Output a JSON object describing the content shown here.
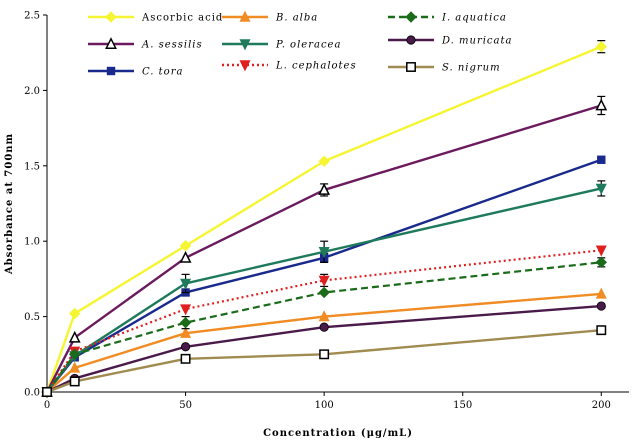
{
  "chart_data": {
    "type": "line",
    "title": "",
    "xlabel": "Concentration (μg/mL)",
    "ylabel": "Absorbance at 700nm",
    "xlim": [
      0,
      210
    ],
    "ylim": [
      0,
      2.5
    ],
    "xticks": [
      0,
      50,
      100,
      150,
      200
    ],
    "yticks": [
      0.0,
      0.5,
      1.0,
      1.5,
      2.0,
      2.5
    ],
    "xtick_labels": [
      "0",
      "50",
      "100",
      "150",
      "200"
    ],
    "ytick_labels": [
      "0.0",
      "0.5",
      "1.0",
      "1.5",
      "2.0",
      "2.5"
    ],
    "x": [
      0,
      10,
      50,
      100,
      200
    ],
    "series": [
      {
        "name": "Ascorbic acid",
        "italic": false,
        "color": "#f5f532",
        "marker": "diamond",
        "dash": "solid",
        "values": [
          0.0,
          0.52,
          0.97,
          1.53,
          2.29
        ],
        "errors": [
          0,
          0,
          0,
          0,
          0.04
        ]
      },
      {
        "name": "A. sessilis",
        "italic": true,
        "color": "#6b1a5e",
        "marker": "triangle-open",
        "dash": "solid",
        "values": [
          0.0,
          0.36,
          0.89,
          1.34,
          1.9
        ],
        "errors": [
          0,
          0,
          0,
          0.04,
          0.06
        ]
      },
      {
        "name": "C. tora",
        "italic": true,
        "color": "#1a2a8c",
        "marker": "square",
        "dash": "solid",
        "values": [
          0.0,
          0.23,
          0.66,
          0.89,
          1.54
        ],
        "errors": [
          0,
          0,
          0,
          0.03,
          0
        ]
      },
      {
        "name": "B. alba",
        "italic": true,
        "color": "#f08c23",
        "marker": "triangle",
        "dash": "solid",
        "values": [
          0.0,
          0.16,
          0.39,
          0.5,
          0.65
        ],
        "errors": [
          0,
          0,
          0,
          0,
          0
        ]
      },
      {
        "name": "P. oleracea",
        "italic": true,
        "color": "#1e7a5a",
        "marker": "triangle-down",
        "dash": "solid",
        "values": [
          0.0,
          0.24,
          0.72,
          0.93,
          1.35
        ],
        "errors": [
          0,
          0,
          0.06,
          0.07,
          0.05
        ]
      },
      {
        "name": "L. cephalotes",
        "italic": true,
        "color": "#e02020",
        "marker": "triangle-down",
        "dash": "dotted",
        "values": [
          0.0,
          0.27,
          0.55,
          0.74,
          0.94
        ],
        "errors": [
          0,
          0,
          0,
          0.04,
          0
        ]
      },
      {
        "name": "I. aquatica",
        "italic": true,
        "color": "#1a6b1a",
        "marker": "diamond",
        "dash": "dashed",
        "values": [
          0.0,
          0.25,
          0.46,
          0.66,
          0.86
        ],
        "errors": [
          0,
          0,
          0.04,
          0,
          0.03
        ]
      },
      {
        "name": "D. muricata",
        "italic": true,
        "color": "#4a1a4a",
        "marker": "circle",
        "dash": "solid",
        "values": [
          0.0,
          0.09,
          0.3,
          0.43,
          0.57
        ],
        "errors": [
          0,
          0,
          0,
          0,
          0
        ]
      },
      {
        "name": "S. nigrum",
        "italic": true,
        "color": "#a08c50",
        "marker": "square-open",
        "dash": "solid",
        "values": [
          0.0,
          0.07,
          0.22,
          0.25,
          0.41
        ],
        "errors": [
          0,
          0,
          0,
          0,
          0
        ]
      }
    ],
    "legend_position": "top"
  }
}
